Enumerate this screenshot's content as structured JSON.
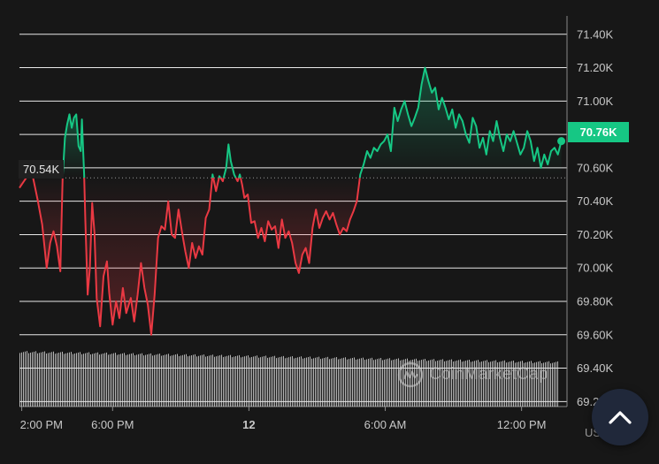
{
  "chart_data": {
    "type": "line",
    "unit": "USD",
    "current_price_label": "70.76K",
    "reference_price_label": "70.54K",
    "reference_price": 70540,
    "current_price": 70760,
    "y_tick_labels": [
      "71.40K",
      "71.20K",
      "71.00K",
      "70.80K",
      "70.60K",
      "70.40K",
      "70.20K",
      "70.00K",
      "69.80K",
      "69.60K",
      "69.40K",
      "69.20K"
    ],
    "y_ticks": [
      71400,
      71200,
      71000,
      70800,
      70600,
      70400,
      70200,
      70000,
      69800,
      69600,
      69400,
      69200
    ],
    "ylim": [
      69170,
      71510
    ],
    "x_range_hours": [
      13.9,
      38.0
    ],
    "x_ticks": [
      {
        "hour": 14,
        "label": "2:00 PM",
        "bold": false
      },
      {
        "hour": 18,
        "label": "6:00 PM",
        "bold": false
      },
      {
        "hour": 24,
        "label": "12",
        "bold": true
      },
      {
        "hour": 30,
        "label": "6:00 AM",
        "bold": false
      },
      {
        "hour": 36,
        "label": "12:00 PM",
        "bold": false
      }
    ],
    "colors": {
      "up": "#16c784",
      "down": "#ea3943",
      "grid": "#ffffff",
      "background": "#171717",
      "volume": "#e0e0e0"
    },
    "price_points": [
      [
        13.9,
        70480
      ],
      [
        14.1,
        70520
      ],
      [
        14.3,
        70560
      ],
      [
        14.5,
        70540
      ],
      [
        14.7,
        70410
      ],
      [
        14.9,
        70260
      ],
      [
        15.1,
        70000
      ],
      [
        15.25,
        70150
      ],
      [
        15.4,
        70220
      ],
      [
        15.55,
        70130
      ],
      [
        15.7,
        69980
      ],
      [
        15.8,
        70540
      ],
      [
        15.9,
        70780
      ],
      [
        16.0,
        70860
      ],
      [
        16.1,
        70920
      ],
      [
        16.2,
        70840
      ],
      [
        16.3,
        70900
      ],
      [
        16.4,
        70920
      ],
      [
        16.5,
        70730
      ],
      [
        16.6,
        70700
      ],
      [
        16.65,
        70890
      ],
      [
        16.75,
        70550
      ],
      [
        16.8,
        70280
      ],
      [
        16.9,
        69840
      ],
      [
        17.0,
        70000
      ],
      [
        17.1,
        70390
      ],
      [
        17.2,
        70210
      ],
      [
        17.3,
        69820
      ],
      [
        17.45,
        69650
      ],
      [
        17.6,
        69950
      ],
      [
        17.75,
        70040
      ],
      [
        17.85,
        69850
      ],
      [
        18.0,
        69660
      ],
      [
        18.15,
        69800
      ],
      [
        18.3,
        69700
      ],
      [
        18.45,
        69880
      ],
      [
        18.6,
        69730
      ],
      [
        18.8,
        69820
      ],
      [
        18.95,
        69680
      ],
      [
        19.1,
        69840
      ],
      [
        19.25,
        70030
      ],
      [
        19.4,
        69880
      ],
      [
        19.55,
        69780
      ],
      [
        19.7,
        69600
      ],
      [
        19.85,
        69840
      ],
      [
        20.0,
        70180
      ],
      [
        20.15,
        70250
      ],
      [
        20.3,
        70230
      ],
      [
        20.45,
        70400
      ],
      [
        20.6,
        70200
      ],
      [
        20.75,
        70180
      ],
      [
        20.9,
        70350
      ],
      [
        21.05,
        70220
      ],
      [
        21.2,
        70100
      ],
      [
        21.35,
        70000
      ],
      [
        21.5,
        70150
      ],
      [
        21.65,
        70060
      ],
      [
        21.8,
        70130
      ],
      [
        21.95,
        70080
      ],
      [
        22.1,
        70300
      ],
      [
        22.25,
        70350
      ],
      [
        22.4,
        70560
      ],
      [
        22.55,
        70460
      ],
      [
        22.7,
        70550
      ],
      [
        22.85,
        70520
      ],
      [
        23.0,
        70600
      ],
      [
        23.1,
        70740
      ],
      [
        23.2,
        70640
      ],
      [
        23.35,
        70560
      ],
      [
        23.5,
        70520
      ],
      [
        23.6,
        70560
      ],
      [
        23.7,
        70500
      ],
      [
        23.8,
        70420
      ],
      [
        23.95,
        70440
      ],
      [
        24.1,
        70270
      ],
      [
        24.25,
        70280
      ],
      [
        24.4,
        70180
      ],
      [
        24.55,
        70240
      ],
      [
        24.7,
        70160
      ],
      [
        24.85,
        70280
      ],
      [
        25.0,
        70230
      ],
      [
        25.15,
        70250
      ],
      [
        25.3,
        70120
      ],
      [
        25.45,
        70290
      ],
      [
        25.6,
        70180
      ],
      [
        25.75,
        70220
      ],
      [
        25.9,
        70150
      ],
      [
        26.05,
        70030
      ],
      [
        26.2,
        69970
      ],
      [
        26.35,
        70080
      ],
      [
        26.5,
        70120
      ],
      [
        26.65,
        70030
      ],
      [
        26.8,
        70240
      ],
      [
        26.95,
        70350
      ],
      [
        27.1,
        70240
      ],
      [
        27.25,
        70300
      ],
      [
        27.4,
        70340
      ],
      [
        27.55,
        70290
      ],
      [
        27.7,
        70330
      ],
      [
        27.85,
        70260
      ],
      [
        28.0,
        70200
      ],
      [
        28.15,
        70240
      ],
      [
        28.3,
        70220
      ],
      [
        28.45,
        70290
      ],
      [
        28.6,
        70340
      ],
      [
        28.75,
        70400
      ],
      [
        28.9,
        70560
      ],
      [
        29.05,
        70620
      ],
      [
        29.2,
        70700
      ],
      [
        29.35,
        70660
      ],
      [
        29.5,
        70720
      ],
      [
        29.65,
        70700
      ],
      [
        29.8,
        70740
      ],
      [
        29.95,
        70760
      ],
      [
        30.1,
        70800
      ],
      [
        30.25,
        70700
      ],
      [
        30.4,
        70960
      ],
      [
        30.55,
        70880
      ],
      [
        30.7,
        70950
      ],
      [
        30.85,
        71000
      ],
      [
        31.0,
        70920
      ],
      [
        31.15,
        70850
      ],
      [
        31.3,
        70900
      ],
      [
        31.45,
        70960
      ],
      [
        31.6,
        71100
      ],
      [
        31.75,
        71200
      ],
      [
        31.9,
        71120
      ],
      [
        32.05,
        71050
      ],
      [
        32.2,
        71080
      ],
      [
        32.35,
        70950
      ],
      [
        32.5,
        71020
      ],
      [
        32.65,
        70960
      ],
      [
        32.8,
        70890
      ],
      [
        32.95,
        70950
      ],
      [
        33.1,
        70840
      ],
      [
        33.25,
        70920
      ],
      [
        33.4,
        70880
      ],
      [
        33.55,
        70800
      ],
      [
        33.7,
        70750
      ],
      [
        33.85,
        70900
      ],
      [
        34.0,
        70850
      ],
      [
        34.15,
        70720
      ],
      [
        34.3,
        70780
      ],
      [
        34.45,
        70680
      ],
      [
        34.6,
        70820
      ],
      [
        34.75,
        70760
      ],
      [
        34.9,
        70880
      ],
      [
        35.05,
        70780
      ],
      [
        35.2,
        70700
      ],
      [
        35.35,
        70800
      ],
      [
        35.5,
        70760
      ],
      [
        35.65,
        70820
      ],
      [
        35.8,
        70750
      ],
      [
        35.95,
        70680
      ],
      [
        36.1,
        70720
      ],
      [
        36.25,
        70820
      ],
      [
        36.4,
        70760
      ],
      [
        36.55,
        70640
      ],
      [
        36.7,
        70720
      ],
      [
        36.85,
        70600
      ],
      [
        37.0,
        70680
      ],
      [
        37.15,
        70620
      ],
      [
        37.3,
        70700
      ],
      [
        37.45,
        70720
      ],
      [
        37.6,
        70680
      ],
      [
        37.75,
        70760
      ]
    ]
  },
  "watermark_text": "CoinMarketCap",
  "scroll_top_icon": "chevron-up-icon"
}
